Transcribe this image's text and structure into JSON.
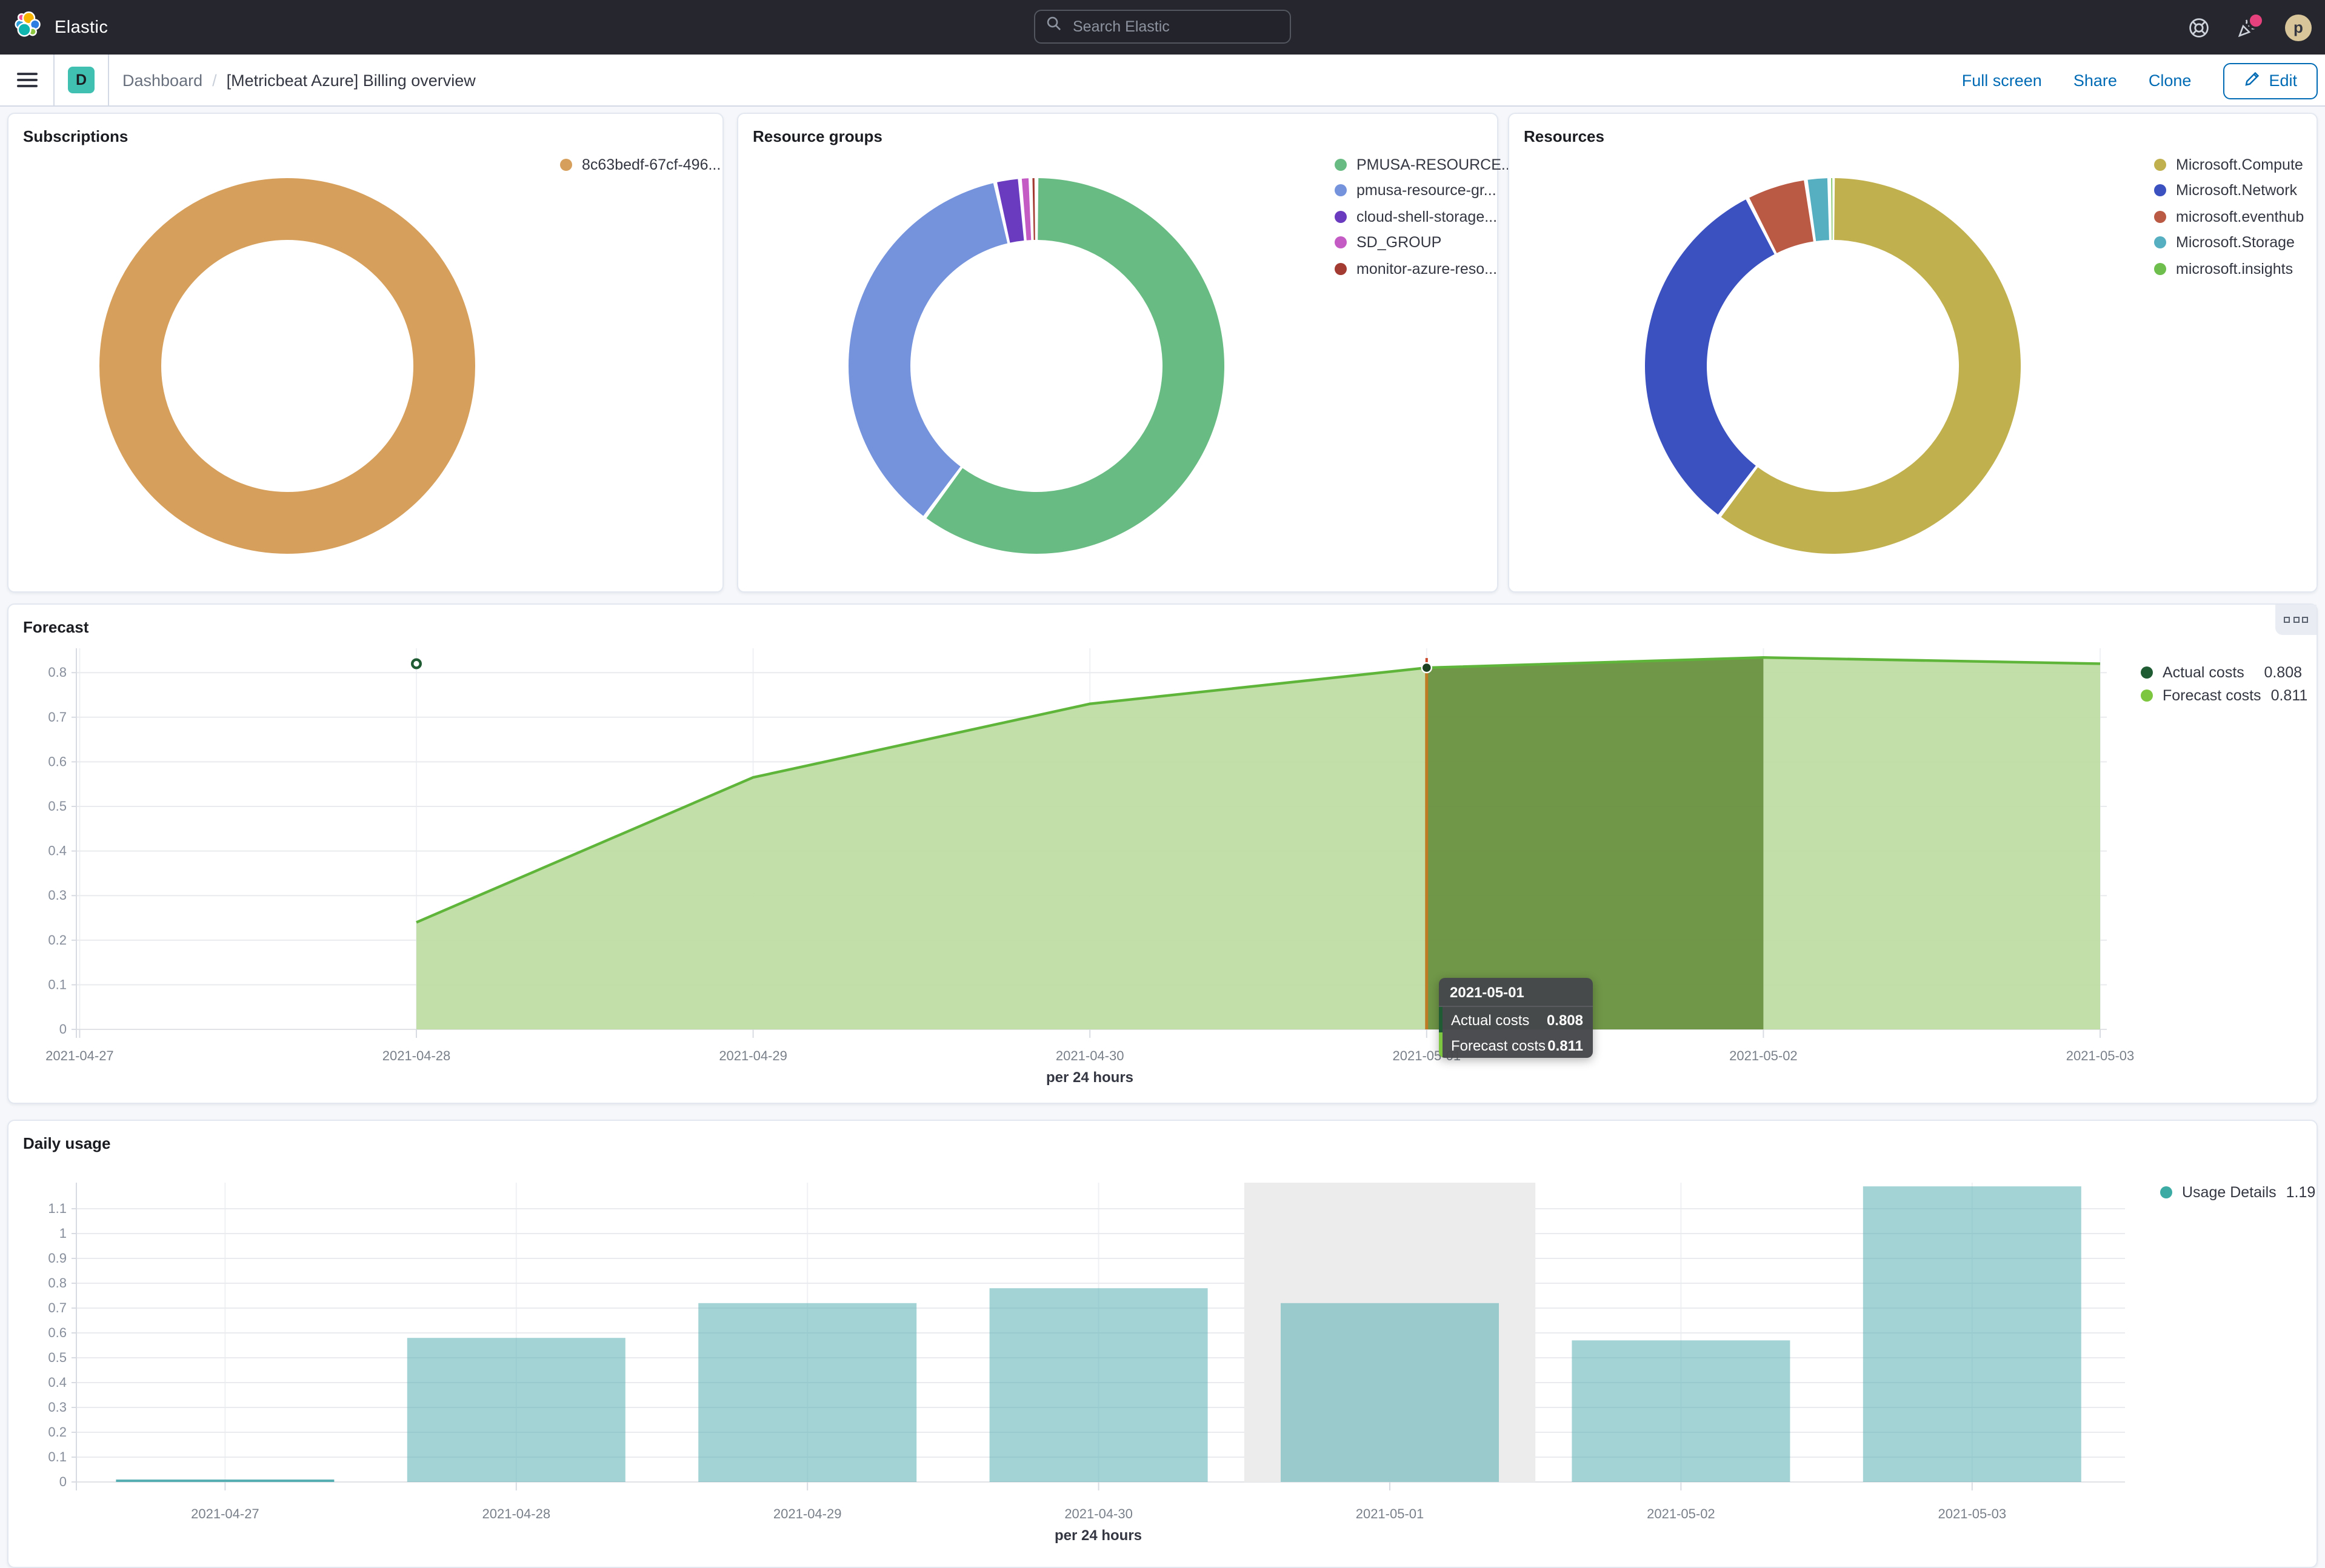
{
  "header": {
    "brand": "Elastic",
    "search_placeholder": "Search Elastic",
    "help_icon": "lifebuoy-icon",
    "news_icon": "party-popper-icon",
    "avatar_initial": "p"
  },
  "navbar": {
    "space_initial": "D",
    "breadcrumb_root": "Dashboard",
    "separator": "/",
    "page_title": "[Metricbeat Azure] Billing overview",
    "actions": [
      "Full screen",
      "Share",
      "Clone"
    ],
    "edit_label": "Edit"
  },
  "colors": {
    "link_blue": "#006BB4",
    "header_bg": "#25262E",
    "space_badge": "#3FC0B1",
    "hover_band_gray": "#ECECEC",
    "forecast_band_overlay": "#3E6B0D",
    "cursor_line": "#BE7B24"
  },
  "chart_data": [
    {
      "id": "subscriptions",
      "type": "pie",
      "title": "Subscriptions",
      "legend_position": "right",
      "segments": [
        {
          "label": "8c63bedf-67cf-496...",
          "value": 100,
          "color": "#D6A05C"
        }
      ]
    },
    {
      "id": "resource-groups",
      "type": "pie",
      "title": "Resource groups",
      "legend_position": "right",
      "segments": [
        {
          "label": "PMUSA-RESOURCE...",
          "value": 59.7,
          "color": "#68BC83"
        },
        {
          "label": "pmusa-resource-gr...",
          "value": 36.1,
          "color": "#7493DC"
        },
        {
          "label": "cloud-shell-storage...",
          "value": 2.1,
          "color": "#6A3BBF"
        },
        {
          "label": "SD_GROUP",
          "value": 0.9,
          "color": "#C45BC4"
        },
        {
          "label": "monitor-azure-reso...",
          "value": 0.5,
          "color": "#A33B32"
        }
      ]
    },
    {
      "id": "resources",
      "type": "pie",
      "title": "Resources",
      "legend_position": "right",
      "segments": [
        {
          "label": "Microsoft.Compute",
          "value": 60.3,
          "color": "#C0B04E"
        },
        {
          "label": "Microsoft.Network",
          "value": 32.2,
          "color": "#3B51C0"
        },
        {
          "label": "microsoft.eventhub",
          "value": 5.2,
          "color": "#BA5A45"
        },
        {
          "label": "Microsoft.Storage",
          "value": 2.0,
          "color": "#55AFC0"
        },
        {
          "label": "microsoft.insights",
          "value": 0.3,
          "color": "#6DBE4D"
        }
      ]
    },
    {
      "id": "forecast",
      "type": "area",
      "title": "Forecast",
      "xlabel": "per 24 hours",
      "x_labels": [
        "2021-04-27",
        "2021-04-28",
        "2021-04-29",
        "2021-04-30",
        "2021-05-01",
        "2021-05-02",
        "2021-05-03"
      ],
      "y_ticks": [
        "0",
        "0.1",
        "0.2",
        "0.3",
        "0.4",
        "0.5",
        "0.6",
        "0.7",
        "0.8"
      ],
      "y_step": 0.1,
      "series": [
        {
          "name": "Actual costs",
          "current": "0.808",
          "color": "#205C33",
          "marker": {
            "x_index": 1,
            "y": 0.82
          }
        },
        {
          "name": "Forecast costs",
          "current": "0.811",
          "color": "#7DC63F",
          "line_color": "#5FB53A",
          "fill_color": "#BDDCA2",
          "values": [
            null,
            0.24,
            0.565,
            0.73,
            0.811,
            0.834,
            0.82
          ]
        }
      ],
      "hover": {
        "band_start_index": 4,
        "band_end_index": 5,
        "point": {
          "x_index": 4,
          "y": 0.811
        }
      },
      "tooltip": {
        "date": "2021-05-01",
        "rows": [
          {
            "label": "Actual costs",
            "value": "0.808",
            "color": "#205C33"
          },
          {
            "label": "Forecast costs",
            "value": "0.811",
            "color": "#7DC63F"
          }
        ]
      }
    },
    {
      "id": "daily-usage",
      "type": "bar",
      "title": "Daily usage",
      "xlabel": "per 24 hours",
      "x_labels": [
        "2021-04-27",
        "2021-04-28",
        "2021-04-29",
        "2021-04-30",
        "2021-05-01",
        "2021-05-02",
        "2021-05-03"
      ],
      "y_ticks": [
        "0",
        "0.1",
        "0.2",
        "0.3",
        "0.4",
        "0.5",
        "0.6",
        "0.7",
        "0.8",
        "0.9",
        "1",
        "1.1"
      ],
      "y_step": 0.1,
      "series": [
        {
          "name": "Usage Details",
          "current": "1.19",
          "color": "#3BABA4",
          "bar_color": "#57AEB2",
          "bar_opacity": 0.55,
          "values": [
            0.005,
            0.58,
            0.72,
            0.78,
            0.72,
            0.57,
            1.19
          ]
        }
      ],
      "hover": {
        "band_index": 4
      }
    }
  ]
}
